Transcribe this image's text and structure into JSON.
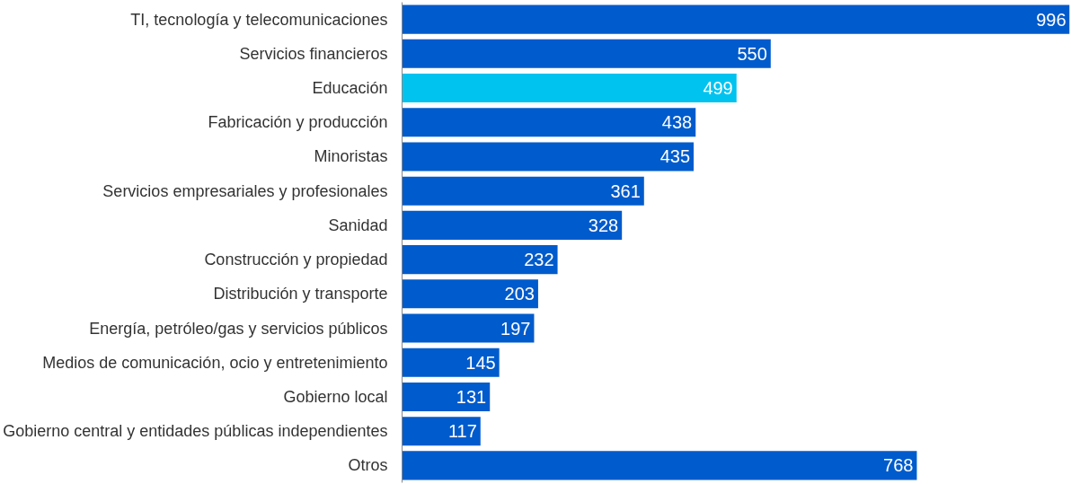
{
  "chart_data": {
    "type": "bar",
    "orientation": "horizontal",
    "categories": [
      "TI, tecnología y telecomunicaciones",
      "Servicios financieros",
      "Educación",
      "Fabricación y producción",
      "Minoristas",
      "Servicios empresariales y profesionales",
      "Sanidad",
      "Construcción y propiedad",
      "Distribución y transporte",
      "Energía, petróleo/gas y servicios públicos",
      "Medios de comunicación, ocio y entretenimiento",
      "Gobierno local",
      "Gobierno central y entidades públicas independientes",
      "Otros"
    ],
    "values": [
      996,
      550,
      499,
      438,
      435,
      361,
      328,
      232,
      203,
      197,
      145,
      131,
      117,
      768
    ],
    "colors": [
      "#005bcc",
      "#005bcc",
      "#00c3f0",
      "#005bcc",
      "#005bcc",
      "#005bcc",
      "#005bcc",
      "#005bcc",
      "#005bcc",
      "#005bcc",
      "#005bcc",
      "#005bcc",
      "#005bcc",
      "#005bcc"
    ],
    "data_labels": true,
    "grid": false
  }
}
